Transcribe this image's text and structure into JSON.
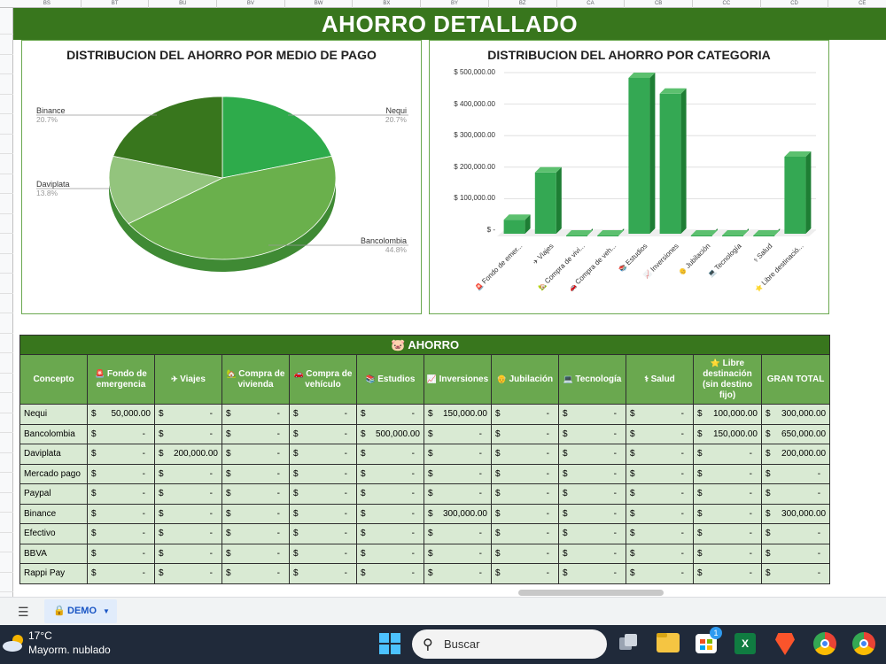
{
  "sheet": {
    "column_headers": [
      "BS",
      "BT",
      "BU",
      "BV",
      "BW",
      "BX",
      "BY",
      "BZ",
      "CA",
      "CB",
      "CC",
      "CD",
      "CE"
    ],
    "banner_title": "AHORRO DETALLADO",
    "tab_name": "DEMO"
  },
  "pie_chart": {
    "title": "DISTRIBUCION DEL AHORRO POR MEDIO DE PAGO"
  },
  "bar_chart": {
    "title": "DISTRIBUCION DEL AHORRO POR CATEGORIA"
  },
  "chart_data": [
    {
      "type": "pie",
      "title": "DISTRIBUCION DEL AHORRO POR MEDIO DE PAGO",
      "slices": [
        {
          "label": "Nequi",
          "value": 300000,
          "percent": "20.7%",
          "color": "#2eab4b"
        },
        {
          "label": "Bancolombia",
          "value": 650000,
          "percent": "44.8%",
          "color": "#6ab04c"
        },
        {
          "label": "Daviplata",
          "value": 200000,
          "percent": "13.8%",
          "color": "#93c47d"
        },
        {
          "label": "Binance",
          "value": 300000,
          "percent": "20.7%",
          "color": "#38761d"
        }
      ]
    },
    {
      "type": "bar",
      "title": "DISTRIBUCION DEL AHORRO POR CATEGORIA",
      "categories": [
        "Fondo de emer...",
        "Viajes",
        "Compra de vivi...",
        "Compra de veh...",
        "Estudios",
        "Inversiones",
        "Jubilación",
        "Tecnología",
        "Salud",
        "Libre destinació..."
      ],
      "category_icons": [
        "🚨",
        "✈",
        "🏡",
        "🚗",
        "📚",
        "📈",
        "👴",
        "💻",
        "⚕",
        "⭐"
      ],
      "values": [
        50000,
        200000,
        0,
        0,
        500000,
        450000,
        0,
        0,
        0,
        250000
      ],
      "yticks": [
        "$ -",
        "$ 100,000.00",
        "$ 200,000.00",
        "$ 300,000.00",
        "$ 400,000.00",
        "$ 500,000.00"
      ],
      "ylim": [
        0,
        500000
      ],
      "color": "#34a853",
      "grid": true
    }
  ],
  "table": {
    "section_title": "AHORRO",
    "headers": [
      {
        "icon": "",
        "label": "Concepto"
      },
      {
        "icon": "🚨",
        "label": "Fondo de emergencia"
      },
      {
        "icon": "✈",
        "label": "Viajes"
      },
      {
        "icon": "🏡",
        "label": "Compra de vivienda"
      },
      {
        "icon": "🚗",
        "label": "Compra de vehículo"
      },
      {
        "icon": "📚",
        "label": "Estudios"
      },
      {
        "icon": "📈",
        "label": "Inversiones"
      },
      {
        "icon": "👴",
        "label": "Jubilación"
      },
      {
        "icon": "💻",
        "label": "Tecnología"
      },
      {
        "icon": "⚕",
        "label": "Salud"
      },
      {
        "icon": "⭐",
        "label": "Libre destinación (sin destino fijo)"
      },
      {
        "icon": "",
        "label": "GRAN TOTAL"
      }
    ],
    "rows": [
      {
        "concept": "Nequi",
        "values": [
          "50,000.00",
          "-",
          "-",
          "-",
          "-",
          "150,000.00",
          "-",
          "-",
          "-",
          "100,000.00",
          "300,000.00"
        ]
      },
      {
        "concept": "Bancolombia",
        "values": [
          "-",
          "-",
          "-",
          "-",
          "500,000.00",
          "-",
          "-",
          "-",
          "-",
          "150,000.00",
          "650,000.00"
        ]
      },
      {
        "concept": "Daviplata",
        "values": [
          "-",
          "200,000.00",
          "-",
          "-",
          "-",
          "-",
          "-",
          "-",
          "-",
          "-",
          "200,000.00"
        ]
      },
      {
        "concept": "Mercado pago",
        "values": [
          "-",
          "-",
          "-",
          "-",
          "-",
          "-",
          "-",
          "-",
          "-",
          "-",
          "-"
        ]
      },
      {
        "concept": "Paypal",
        "values": [
          "-",
          "-",
          "-",
          "-",
          "-",
          "-",
          "-",
          "-",
          "-",
          "-",
          "-"
        ]
      },
      {
        "concept": "Binance",
        "values": [
          "-",
          "-",
          "-",
          "-",
          "-",
          "300,000.00",
          "-",
          "-",
          "-",
          "-",
          "300,000.00"
        ]
      },
      {
        "concept": "Efectivo",
        "values": [
          "-",
          "-",
          "-",
          "-",
          "-",
          "-",
          "-",
          "-",
          "-",
          "-",
          "-"
        ]
      },
      {
        "concept": "BBVA",
        "values": [
          "-",
          "-",
          "-",
          "-",
          "-",
          "-",
          "-",
          "-",
          "-",
          "-",
          "-"
        ]
      },
      {
        "concept": "Rappi Pay",
        "values": [
          "-",
          "-",
          "-",
          "-",
          "-",
          "-",
          "-",
          "-",
          "-",
          "-",
          "-"
        ]
      }
    ],
    "currency": "$"
  },
  "taskbar": {
    "weather_temp": "17°C",
    "weather_desc": "Mayorm. nublado",
    "search_placeholder": "Buscar",
    "store_badge": "1"
  },
  "colors": {
    "dark_green": "#38761d",
    "mid_green": "#6aa84f",
    "light_green": "#d9ead3",
    "bar_green": "#34a853"
  }
}
